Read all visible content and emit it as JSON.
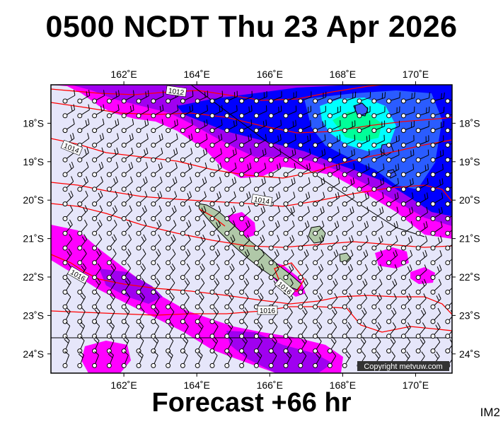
{
  "header": {
    "title": "0500 NCDT Thu 23 Apr 2026"
  },
  "footer": {
    "forecast": "Forecast +66 hr",
    "image_code": "IM2"
  },
  "map": {
    "lon_range": [
      160.0,
      171.0
    ],
    "lat_range": [
      -24.5,
      -17.0
    ],
    "lon_ticks": [
      {
        "value": 162,
        "label": "162˚E"
      },
      {
        "value": 164,
        "label": "164˚E"
      },
      {
        "value": 166,
        "label": "166˚E"
      },
      {
        "value": 168,
        "label": "168˚E"
      },
      {
        "value": 170,
        "label": "170˚E"
      }
    ],
    "lat_ticks": [
      {
        "value": -18,
        "label": "18˚S"
      },
      {
        "value": -19,
        "label": "19˚S"
      },
      {
        "value": -20,
        "label": "20˚S"
      },
      {
        "value": -21,
        "label": "21˚S"
      },
      {
        "value": -22,
        "label": "22˚S"
      },
      {
        "value": -23,
        "label": "23˚S"
      },
      {
        "value": -24,
        "label": "24˚S"
      }
    ],
    "isobar_labels": [
      "1012",
      "1014",
      "1014",
      "1016",
      "1016",
      "1016"
    ],
    "copyright": "Copyright metvuw.com",
    "colors": {
      "background": "#e6e6fa",
      "magenta": "#ff00ff",
      "purple": "#a000f0",
      "blue": "#0000ff",
      "cyan": "#00ffff",
      "isobar": "#ff0000",
      "land": "#b0c8a8"
    }
  }
}
